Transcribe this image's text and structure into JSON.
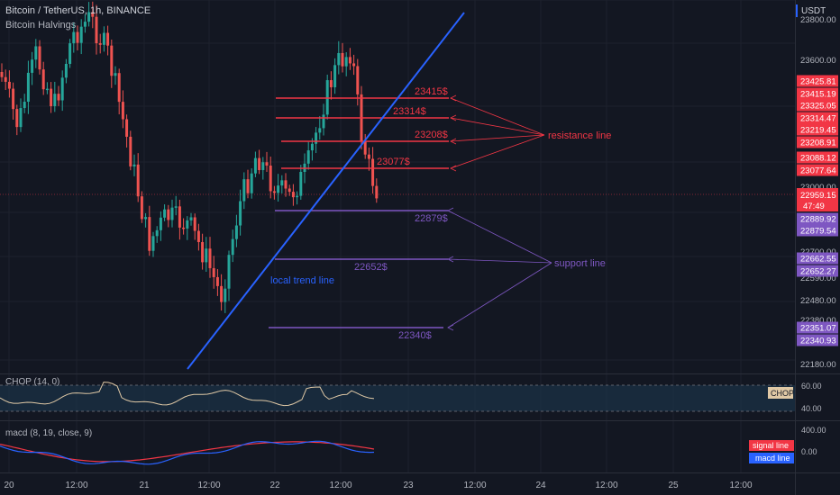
{
  "header": {
    "symbol_line": "Bitcoin / TetherUS, 1h, BINANCE",
    "indicator": "Bitcoin Halvings",
    "currency": "USDT"
  },
  "price_scale": {
    "ticks": [
      "23800.00",
      "23600.00",
      "23000.00",
      "22700.00",
      "22590.00",
      "22480.00",
      "22380.00",
      "22180.00"
    ],
    "resistance_labels": [
      "23425.81",
      "23415.19",
      "23325.05",
      "23314.47",
      "23219.45",
      "23208.91",
      "23088.12",
      "23077.64"
    ],
    "current": {
      "price": "22959.15",
      "countdown": "47:49"
    },
    "support_labels": [
      "22889.92",
      "22879.54",
      "22662.55",
      "22652.27",
      "22351.07",
      "22340.93"
    ]
  },
  "levels": {
    "resistance": [
      {
        "label": "23415$",
        "price": 23415
      },
      {
        "label": "23314$",
        "price": 23314
      },
      {
        "label": "23208$",
        "price": 23208
      },
      {
        "label": "23077$",
        "price": 23077
      }
    ],
    "support": [
      {
        "label": "22879$",
        "price": 22879
      },
      {
        "label": "22652$",
        "price": 22652
      },
      {
        "label": "22340$",
        "price": 22340
      }
    ]
  },
  "annotations": {
    "resistance_text": "resistance line",
    "support_text": "support line",
    "trend_text": "local trend line"
  },
  "chop": {
    "title": "CHOP (14, 0)",
    "ticks": [
      "60.00",
      "40.00"
    ],
    "badge": "CHOP"
  },
  "macd": {
    "title": "macd (8, 19, close, 9)",
    "ticks": [
      "400.00",
      "0.00"
    ],
    "signal_label": "signal line",
    "macd_label": "macd line"
  },
  "time_axis": [
    "20",
    "12:00",
    "21",
    "12:00",
    "22",
    "12:00",
    "23",
    "12:00",
    "24",
    "12:00",
    "25",
    "12:00"
  ],
  "colors": {
    "bg": "#131722",
    "up": "#26a69a",
    "down": "#ef5350",
    "resistance": "#f23645",
    "support": "#7e57c2",
    "trend": "#2962ff",
    "chop_fill": "#1e3a52",
    "signal": "#f23645",
    "macd": "#2962ff"
  }
}
